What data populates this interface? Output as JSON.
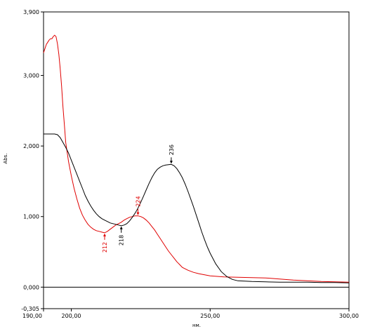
{
  "chart_data": {
    "type": "line",
    "xlabel": "нм.",
    "ylabel": "Abs.",
    "xlim": [
      190,
      300
    ],
    "ylim": [
      -0.305,
      3.9
    ],
    "x_ticks": [
      {
        "value": 190,
        "label": "190,00"
      },
      {
        "value": 200,
        "label": "200,00"
      },
      {
        "value": 250,
        "label": "250,00"
      },
      {
        "value": 300,
        "label": "300,00"
      }
    ],
    "y_ticks": [
      {
        "value": 3.9,
        "label": "3,900"
      },
      {
        "value": 3.0,
        "label": "3,000"
      },
      {
        "value": 2.0,
        "label": "2,000"
      },
      {
        "value": 1.0,
        "label": "1,000"
      },
      {
        "value": 0.0,
        "label": "0,000"
      },
      {
        "value": -0.305,
        "label": "-0,305"
      }
    ],
    "zero_line": 0,
    "series": [
      {
        "color": "#e00000",
        "points": [
          [
            190,
            3.32
          ],
          [
            190.5,
            3.38
          ],
          [
            191,
            3.44
          ],
          [
            191.5,
            3.47
          ],
          [
            192,
            3.5
          ],
          [
            192.5,
            3.52
          ],
          [
            193,
            3.52
          ],
          [
            193.5,
            3.55
          ],
          [
            194,
            3.57
          ],
          [
            194.5,
            3.55
          ],
          [
            195,
            3.45
          ],
          [
            195.5,
            3.3
          ],
          [
            196,
            3.1
          ],
          [
            196.5,
            2.85
          ],
          [
            197,
            2.55
          ],
          [
            197.5,
            2.3
          ],
          [
            198,
            2.05
          ],
          [
            199,
            1.78
          ],
          [
            200,
            1.58
          ],
          [
            201,
            1.4
          ],
          [
            202,
            1.25
          ],
          [
            203,
            1.12
          ],
          [
            204,
            1.02
          ],
          [
            205,
            0.95
          ],
          [
            206,
            0.89
          ],
          [
            207,
            0.85
          ],
          [
            208,
            0.82
          ],
          [
            209,
            0.8
          ],
          [
            210,
            0.79
          ],
          [
            211,
            0.78
          ],
          [
            212,
            0.77
          ],
          [
            213,
            0.79
          ],
          [
            214,
            0.82
          ],
          [
            215,
            0.85
          ],
          [
            216,
            0.88
          ],
          [
            217,
            0.9
          ],
          [
            218,
            0.92
          ],
          [
            219,
            0.95
          ],
          [
            220,
            0.97
          ],
          [
            221,
            0.99
          ],
          [
            222,
            1.0
          ],
          [
            223,
            1.01
          ],
          [
            224,
            1.01
          ],
          [
            225,
            1.0
          ],
          [
            226,
            0.98
          ],
          [
            227,
            0.95
          ],
          [
            228,
            0.91
          ],
          [
            229,
            0.86
          ],
          [
            230,
            0.81
          ],
          [
            231,
            0.75
          ],
          [
            232,
            0.69
          ],
          [
            233,
            0.63
          ],
          [
            234,
            0.57
          ],
          [
            235,
            0.51
          ],
          [
            236,
            0.46
          ],
          [
            237,
            0.41
          ],
          [
            238,
            0.36
          ],
          [
            239,
            0.32
          ],
          [
            240,
            0.28
          ],
          [
            242,
            0.24
          ],
          [
            244,
            0.21
          ],
          [
            246,
            0.19
          ],
          [
            248,
            0.175
          ],
          [
            250,
            0.16
          ],
          [
            255,
            0.145
          ],
          [
            260,
            0.14
          ],
          [
            265,
            0.135
          ],
          [
            270,
            0.13
          ],
          [
            275,
            0.115
          ],
          [
            280,
            0.1
          ],
          [
            285,
            0.09
          ],
          [
            290,
            0.08
          ],
          [
            295,
            0.075
          ],
          [
            300,
            0.07
          ]
        ]
      },
      {
        "color": "#000000",
        "points": [
          [
            190,
            2.17
          ],
          [
            191,
            2.17
          ],
          [
            192,
            2.17
          ],
          [
            193,
            2.17
          ],
          [
            194,
            2.17
          ],
          [
            195,
            2.16
          ],
          [
            196,
            2.12
          ],
          [
            197,
            2.05
          ],
          [
            198,
            1.98
          ],
          [
            199,
            1.9
          ],
          [
            200,
            1.8
          ],
          [
            201,
            1.7
          ],
          [
            202,
            1.6
          ],
          [
            203,
            1.5
          ],
          [
            204,
            1.4
          ],
          [
            205,
            1.3
          ],
          [
            206,
            1.22
          ],
          [
            207,
            1.15
          ],
          [
            208,
            1.09
          ],
          [
            209,
            1.04
          ],
          [
            210,
            1.0
          ],
          [
            211,
            0.97
          ],
          [
            212,
            0.95
          ],
          [
            213,
            0.93
          ],
          [
            214,
            0.91
          ],
          [
            215,
            0.9
          ],
          [
            216,
            0.89
          ],
          [
            217,
            0.88
          ],
          [
            218,
            0.87
          ],
          [
            219,
            0.88
          ],
          [
            220,
            0.9
          ],
          [
            221,
            0.94
          ],
          [
            222,
            0.99
          ],
          [
            223,
            1.05
          ],
          [
            224,
            1.12
          ],
          [
            225,
            1.2
          ],
          [
            226,
            1.29
          ],
          [
            227,
            1.38
          ],
          [
            228,
            1.47
          ],
          [
            229,
            1.55
          ],
          [
            230,
            1.62
          ],
          [
            231,
            1.67
          ],
          [
            232,
            1.7
          ],
          [
            233,
            1.72
          ],
          [
            234,
            1.73
          ],
          [
            235,
            1.735
          ],
          [
            236,
            1.74
          ],
          [
            237,
            1.72
          ],
          [
            238,
            1.68
          ],
          [
            239,
            1.62
          ],
          [
            240,
            1.55
          ],
          [
            241,
            1.46
          ],
          [
            242,
            1.36
          ],
          [
            243,
            1.25
          ],
          [
            244,
            1.14
          ],
          [
            245,
            1.02
          ],
          [
            246,
            0.9
          ],
          [
            247,
            0.78
          ],
          [
            248,
            0.67
          ],
          [
            249,
            0.57
          ],
          [
            250,
            0.48
          ],
          [
            252,
            0.33
          ],
          [
            254,
            0.22
          ],
          [
            256,
            0.15
          ],
          [
            258,
            0.11
          ],
          [
            260,
            0.09
          ],
          [
            265,
            0.08
          ],
          [
            270,
            0.075
          ],
          [
            275,
            0.07
          ],
          [
            280,
            0.07
          ],
          [
            285,
            0.07
          ],
          [
            290,
            0.065
          ],
          [
            295,
            0.065
          ],
          [
            300,
            0.06
          ]
        ]
      }
    ],
    "annotations": [
      {
        "label": "212",
        "x": 212,
        "y": 0.77,
        "color": "#e00000"
      },
      {
        "label": "224",
        "x": 224,
        "y": 1.01,
        "color": "#e00000"
      },
      {
        "label": "218",
        "x": 218,
        "y": 0.87,
        "color": "#000000"
      },
      {
        "label": "236",
        "x": 236,
        "y": 1.74,
        "color": "#000000"
      }
    ]
  }
}
